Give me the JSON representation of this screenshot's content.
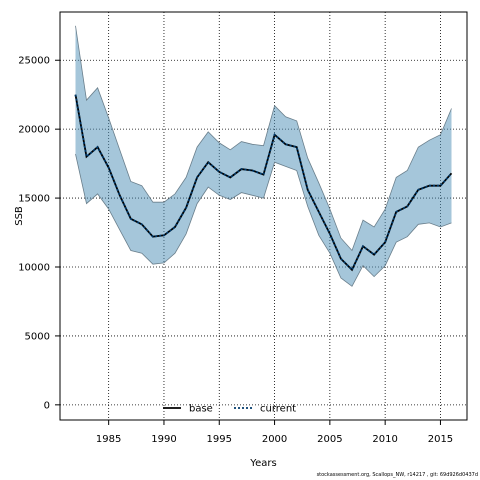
{
  "chart_data": {
    "type": "line",
    "title": "",
    "xlabel": "Years",
    "ylabel": "SSB",
    "xlim": [
      1980.6,
      2017.4
    ],
    "ylim": [
      -1100,
      28500
    ],
    "x_ticks": [
      1985,
      1990,
      1995,
      2000,
      2005,
      2010,
      2015
    ],
    "y_ticks": [
      0,
      5000,
      10000,
      15000,
      20000,
      25000
    ],
    "grid": true,
    "legend_position": "bottom-center",
    "x": [
      1982,
      1983,
      1984,
      1985,
      1986,
      1987,
      1988,
      1989,
      1990,
      1991,
      1992,
      1993,
      1994,
      1995,
      1996,
      1997,
      1998,
      1999,
      2000,
      2001,
      2002,
      2003,
      2004,
      2005,
      2006,
      2007,
      2008,
      2009,
      2010,
      2011,
      2012,
      2013,
      2014,
      2015,
      2016
    ],
    "series": [
      {
        "name": "base",
        "color": "#000000",
        "style": "solid",
        "values": [
          22500,
          18000,
          18700,
          17200,
          15200,
          13500,
          13100,
          12200,
          12300,
          12900,
          14300,
          16500,
          17600,
          16900,
          16500,
          17100,
          17000,
          16700,
          19600,
          18900,
          18700,
          15600,
          14000,
          12400,
          10600,
          9800,
          11500,
          10900,
          11800,
          14000,
          14400,
          15600,
          15900,
          15900,
          16800
        ]
      },
      {
        "name": "current",
        "color": "#003a6b",
        "style": "dotted",
        "values": [
          22500,
          18000,
          18700,
          17200,
          15200,
          13500,
          13100,
          12200,
          12300,
          12900,
          14300,
          16500,
          17600,
          16900,
          16500,
          17100,
          17000,
          16700,
          19600,
          18900,
          18700,
          15600,
          14000,
          12400,
          10600,
          9800,
          11500,
          10900,
          11800,
          14000,
          14400,
          15600,
          15900,
          15900,
          16800
        ]
      }
    ],
    "band": {
      "color": "#4b8db5",
      "upper": [
        27500,
        22100,
        23000,
        20800,
        18500,
        16200,
        15900,
        14700,
        14700,
        15300,
        16500,
        18700,
        19800,
        19000,
        18500,
        19100,
        18900,
        18800,
        21700,
        20900,
        20600,
        17900,
        16100,
        14200,
        12100,
        11200,
        13400,
        12900,
        14200,
        16500,
        17000,
        18700,
        19200,
        19600,
        21500
      ],
      "lower": [
        18200,
        14600,
        15300,
        14200,
        12700,
        11200,
        11000,
        10200,
        10300,
        11000,
        12400,
        14600,
        15800,
        15200,
        14900,
        15400,
        15200,
        15000,
        17600,
        17300,
        17000,
        14400,
        12300,
        11000,
        9200,
        8600,
        10100,
        9300,
        10100,
        11800,
        12200,
        13100,
        13200,
        12900,
        13200
      ]
    }
  },
  "footer_text": "stockassessment.org, Scallops_NW, r14217 , git: 69d926d0437d"
}
